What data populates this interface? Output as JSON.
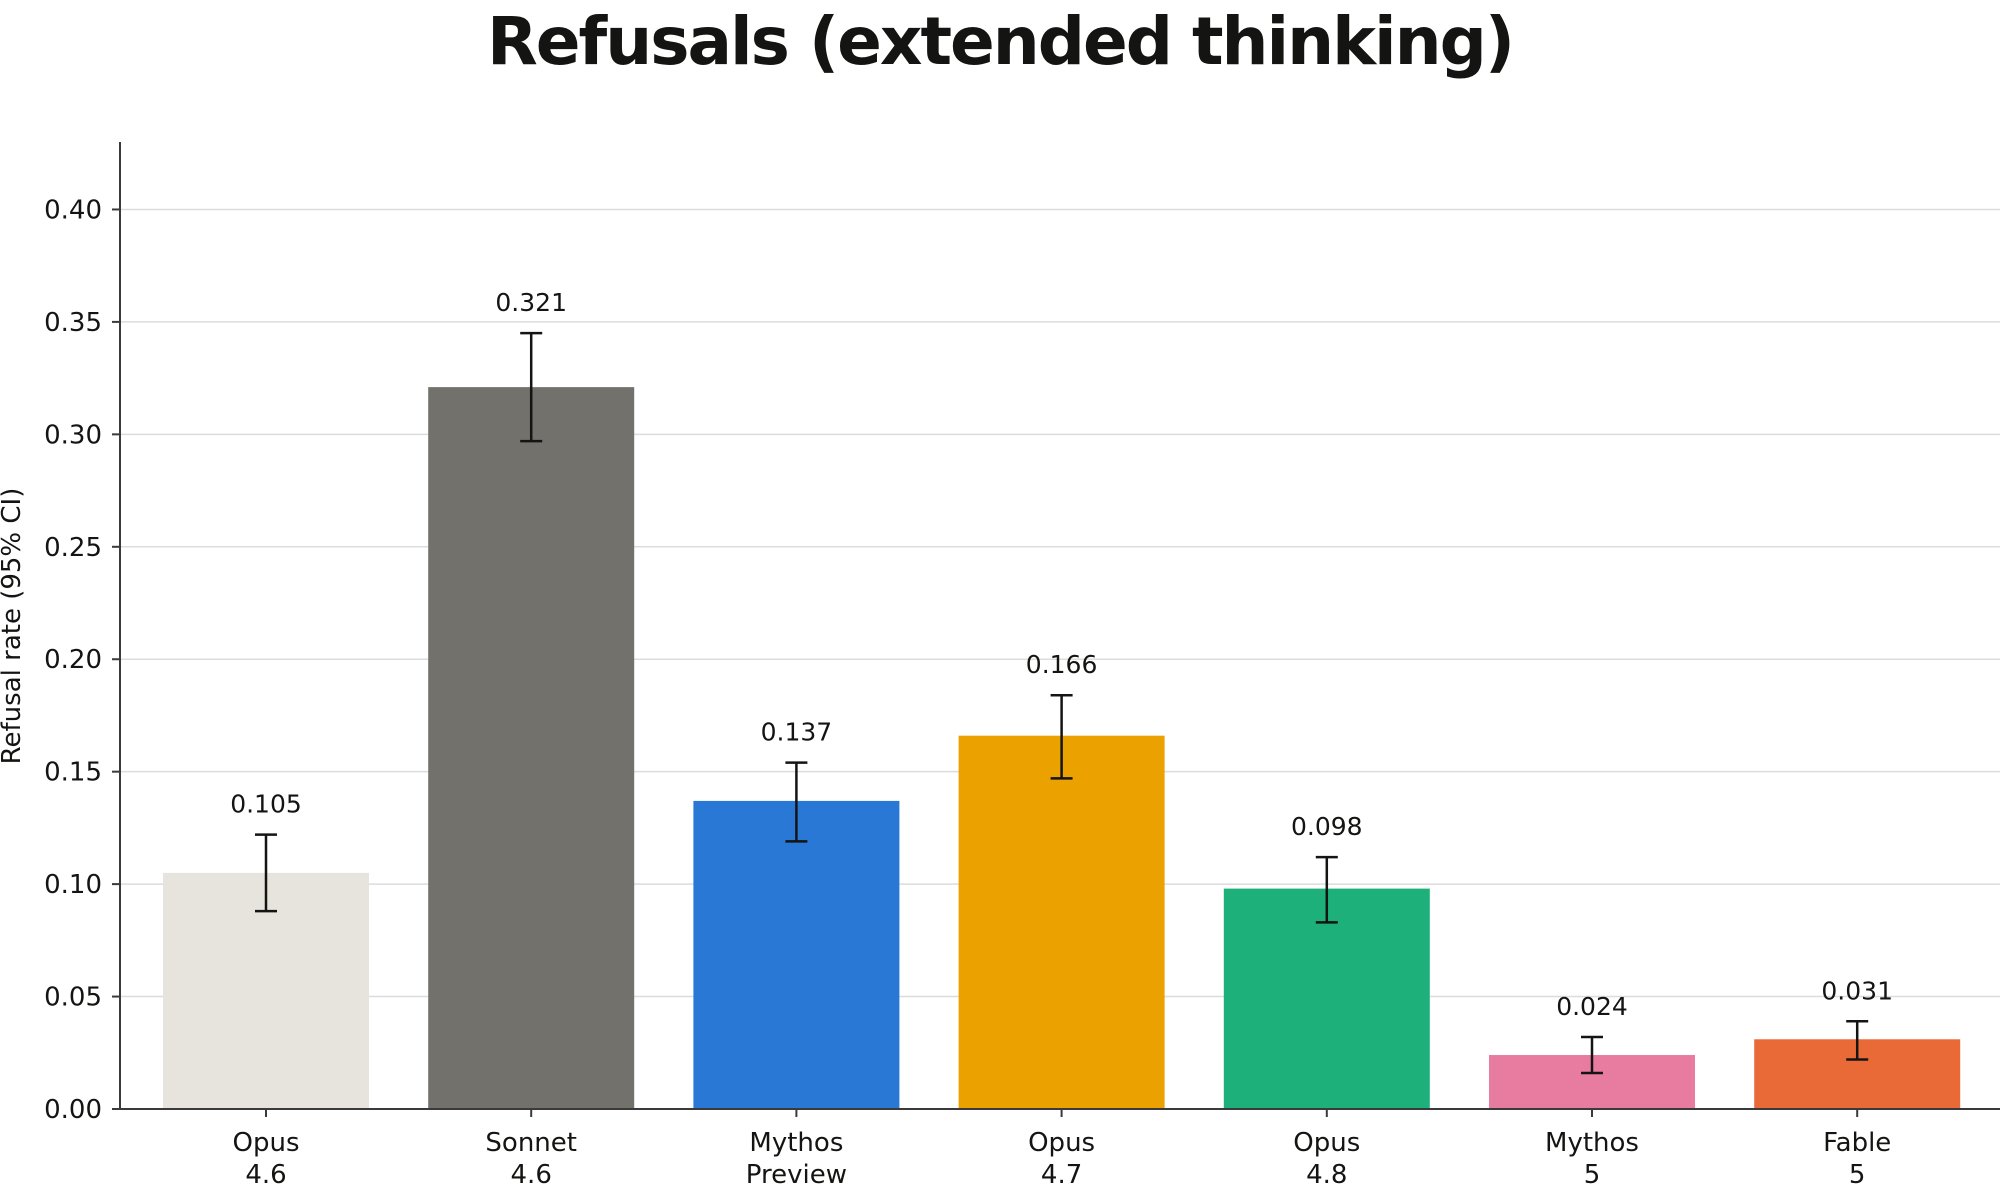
{
  "chart_data": {
    "type": "bar",
    "title": "Refusals (extended thinking)",
    "xlabel": "",
    "ylabel": "Refusal rate (95% CI)",
    "ylim": [
      0,
      0.43
    ],
    "yticks": [
      "0.00",
      "0.05",
      "0.10",
      "0.15",
      "0.20",
      "0.25",
      "0.30",
      "0.35",
      "0.40"
    ],
    "ytick_values": [
      0,
      0.05,
      0.1,
      0.15,
      0.2,
      0.25,
      0.3,
      0.35,
      0.4
    ],
    "grid": "horizontal",
    "categories": [
      [
        "Opus",
        "4.6"
      ],
      [
        "Sonnet",
        "4.6"
      ],
      [
        "Mythos",
        "Preview"
      ],
      [
        "Opus",
        "4.7"
      ],
      [
        "Opus",
        "4.8"
      ],
      [
        "Mythos",
        "5"
      ],
      [
        "Fable",
        "5"
      ]
    ],
    "values": [
      0.105,
      0.321,
      0.137,
      0.166,
      0.098,
      0.024,
      0.031
    ],
    "value_labels": [
      "0.105",
      "0.321",
      "0.137",
      "0.166",
      "0.098",
      "0.024",
      "0.031"
    ],
    "ci_lower": [
      0.088,
      0.297,
      0.119,
      0.147,
      0.083,
      0.016,
      0.022
    ],
    "ci_upper": [
      0.122,
      0.345,
      0.154,
      0.184,
      0.112,
      0.032,
      0.039
    ],
    "colors": [
      "#E6E4DD",
      "#72716C",
      "#2A78D6",
      "#EBA200",
      "#1DB07A",
      "#E87BA0",
      "#EA6A37"
    ]
  }
}
